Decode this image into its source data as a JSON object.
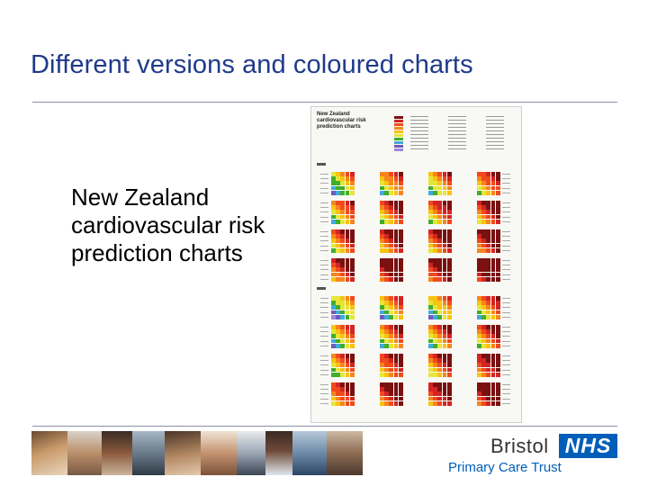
{
  "slide": {
    "title": "Different versions and coloured charts",
    "body_text": "New Zealand cardiovascular risk prediction charts"
  },
  "chart_image": {
    "heading": "New Zealand cardiovascular risk prediction charts",
    "palette": [
      "#7a1010",
      "#d42323",
      "#f04a1a",
      "#f5861f",
      "#f9c30f",
      "#e6e63a",
      "#3fae2a",
      "#41a9dd",
      "#6f5bbd",
      "#9f88d9"
    ]
  },
  "logo": {
    "org": "Bristol",
    "badge": "NHS",
    "subtitle": "Primary Care Trust",
    "badge_color": "#005eb8"
  }
}
